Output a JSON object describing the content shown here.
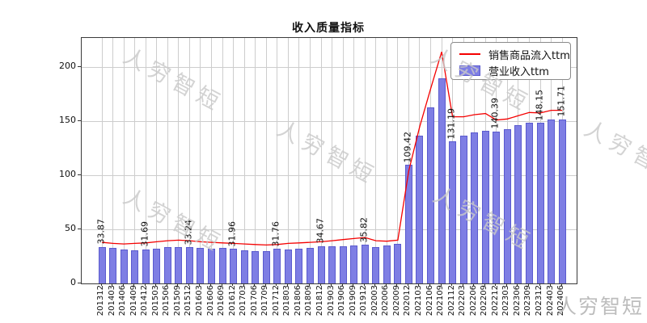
{
  "title": "收入质量指标",
  "legend": [
    {
      "label": "销售商品流入ttm",
      "type": "line",
      "color": "#f40000"
    },
    {
      "label": "营业收入ttm",
      "type": "bar",
      "color": "#7e7ee4"
    }
  ],
  "watermark": {
    "text": "人穷智短",
    "color": "#c9c9c9"
  },
  "chart_data": {
    "type": "bar+line",
    "title": "收入质量指标",
    "categories": [
      "201312",
      "201403",
      "201406",
      "201409",
      "201412",
      "201503",
      "201506",
      "201509",
      "201512",
      "201603",
      "201606",
      "201609",
      "201612",
      "201703",
      "201706",
      "201709",
      "201712",
      "201803",
      "201806",
      "201809",
      "201812",
      "201903",
      "201906",
      "201909",
      "201912",
      "202003",
      "202006",
      "202009",
      "202012",
      "202103",
      "202106",
      "202109",
      "202112",
      "202203",
      "202206",
      "202209",
      "202212",
      "202303",
      "202306",
      "202309",
      "202312",
      "202403",
      "202406"
    ],
    "series": [
      {
        "name": "销售商品流入ttm",
        "type": "line",
        "color": "#f40000",
        "values": [
          38.0,
          37.0,
          36.5,
          37.0,
          37.5,
          38.5,
          39.5,
          40.0,
          39.5,
          38.5,
          38.0,
          37.5,
          37.0,
          36.5,
          36.0,
          35.5,
          36.0,
          37.0,
          37.5,
          38.0,
          38.5,
          39.5,
          40.5,
          41.5,
          42.5,
          39.5,
          39.0,
          40.0,
          104.0,
          145.0,
          180.0,
          214.0,
          154.0,
          154.0,
          156.0,
          157.0,
          151.0,
          152.0,
          155.0,
          158.0,
          157.5,
          160.0,
          160.0
        ]
      },
      {
        "name": "营业收入ttm",
        "type": "bar",
        "color": "#7e7ee4",
        "values": [
          33.87,
          32.8,
          31.2,
          30.5,
          31.69,
          31.9,
          33.5,
          33.6,
          33.24,
          32.5,
          32.0,
          32.5,
          31.96,
          30.8,
          30.2,
          29.8,
          31.76,
          31.5,
          32.3,
          33.2,
          34.67,
          34.0,
          34.5,
          35.0,
          35.82,
          33.8,
          35.0,
          36.8,
          109.42,
          136.5,
          163.0,
          189.5,
          131.19,
          136.5,
          139.5,
          141.0,
          140.39,
          142.5,
          146.3,
          148.5,
          148.15,
          151.5,
          151.71
        ]
      }
    ],
    "bar_labels": {
      "indices": [
        0,
        4,
        8,
        12,
        16,
        20,
        24,
        28,
        32,
        36,
        40,
        42
      ],
      "texts": [
        "33.87",
        "31.69",
        "33.24",
        "31.96",
        "31.76",
        "34.67",
        "35.82",
        "109.42",
        "131.19",
        "140.39",
        "148.15",
        "151.71"
      ]
    },
    "yticks": [
      0,
      50,
      100,
      150,
      200
    ],
    "ylim": [
      0,
      227
    ],
    "grid": true,
    "legend_position": "upper right"
  }
}
